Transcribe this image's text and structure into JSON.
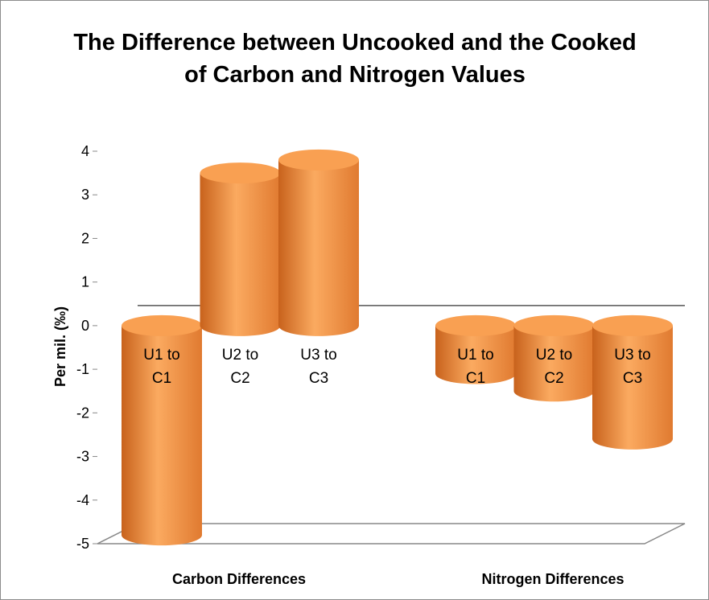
{
  "chart_data": {
    "type": "cylinder",
    "title": "The Difference between Uncooked and the Cooked of Carbon and Nitrogen Values",
    "y_label": "Per mil. (‰)",
    "categories": [
      "Carbon Differences",
      "Nitrogen Differences"
    ],
    "series": [
      {
        "name": "U1 to C1",
        "values": [
          -4.8,
          -1.1
        ]
      },
      {
        "name": "U2 to C2",
        "values": [
          3.5,
          -1.5
        ]
      },
      {
        "name": "U3 to C3",
        "values": [
          3.8,
          -2.6
        ]
      }
    ],
    "color": "#f79646",
    "ylim": [
      -5,
      4
    ],
    "yticks": [
      -5,
      -4,
      -3,
      -2,
      -1,
      0,
      1,
      2,
      3,
      4
    ]
  }
}
